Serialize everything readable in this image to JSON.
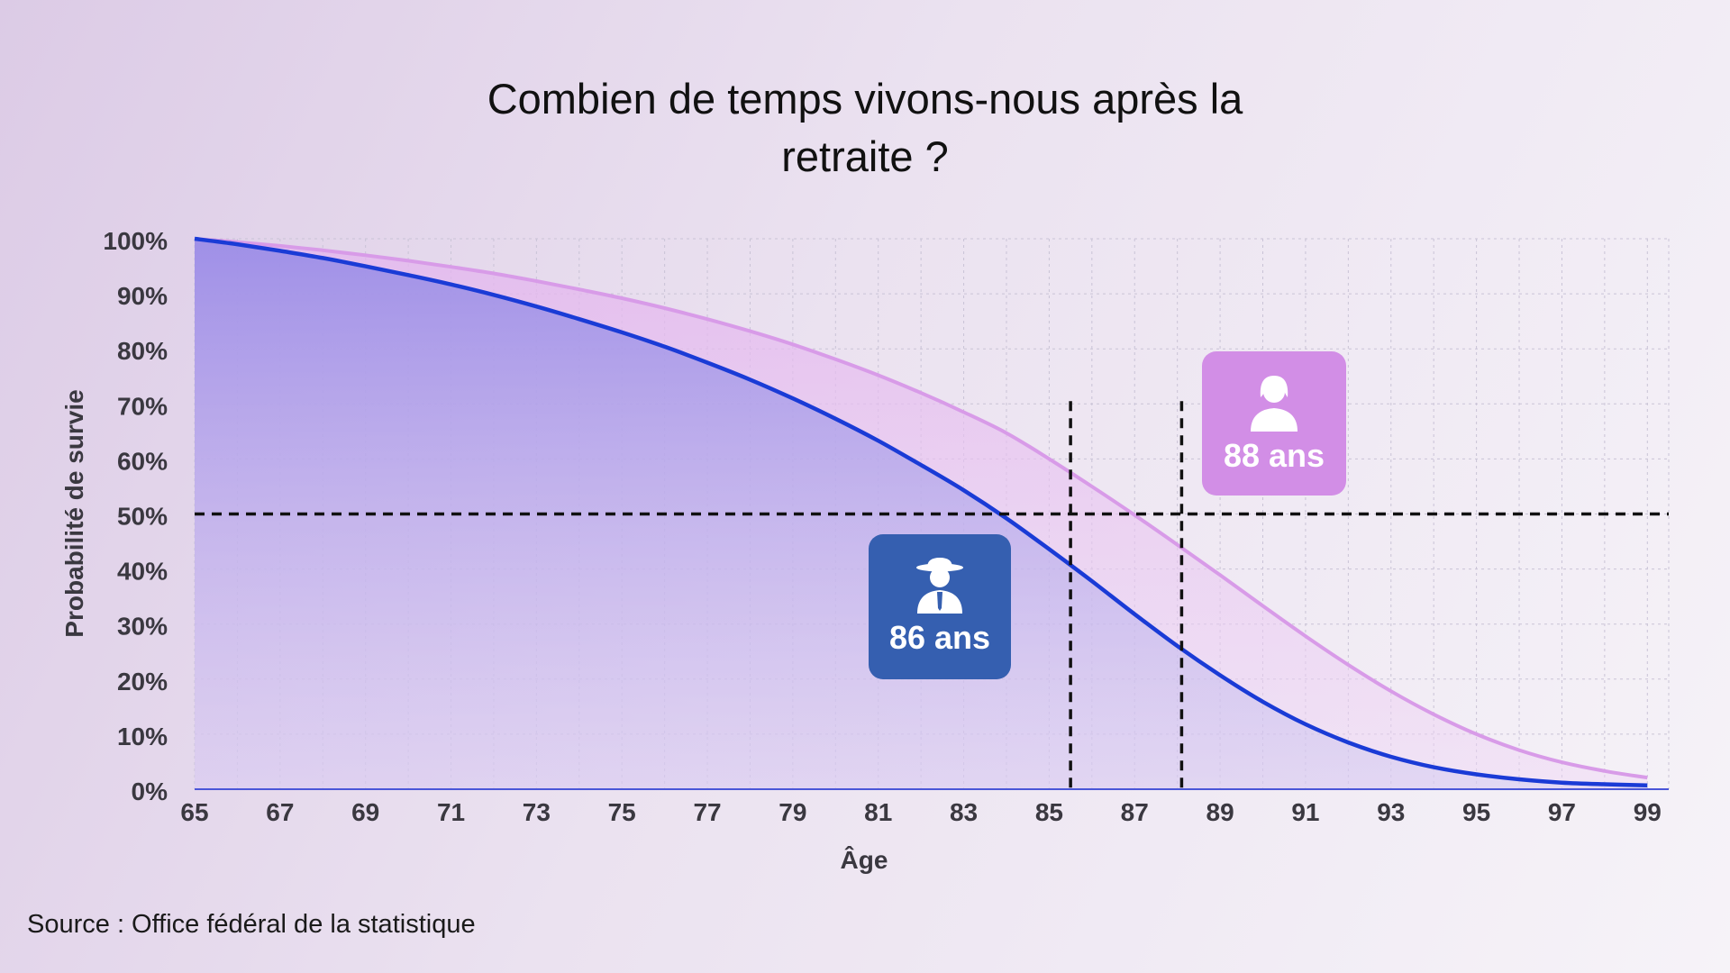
{
  "title_lines": [
    "Combien de temps vivons-nous après la",
    "retraite ?"
  ],
  "source": "Source : Office fédéral de la statistique",
  "callouts": {
    "male": {
      "label": "86 ans",
      "icon": "man-with-hat-icon",
      "color": "#355fb0"
    },
    "female": {
      "label": "88 ans",
      "icon": "woman-icon",
      "color": "#d28ee6"
    }
  },
  "chart_data": {
    "type": "area",
    "xlabel": "Âge",
    "ylabel": "Probabilité de survie",
    "xlim": [
      65,
      99.5
    ],
    "ylim": [
      0,
      100
    ],
    "x_ticks": [
      "65",
      "67",
      "69",
      "71",
      "73",
      "75",
      "77",
      "79",
      "81",
      "83",
      "85",
      "87",
      "89",
      "91",
      "93",
      "95",
      "97",
      "99"
    ],
    "y_ticks": [
      "0%",
      "10%",
      "20%",
      "30%",
      "40%",
      "50%",
      "60%",
      "70%",
      "80%",
      "90%",
      "100%"
    ],
    "grid": true,
    "x": [
      65,
      66,
      67,
      68,
      69,
      70,
      71,
      72,
      73,
      74,
      75,
      76,
      77,
      78,
      79,
      80,
      81,
      82,
      83,
      84,
      85,
      86,
      87,
      88,
      89,
      90,
      91,
      92,
      93,
      94,
      95,
      96,
      97,
      98,
      99
    ],
    "series": [
      {
        "color": "#d89be8",
        "values": [
          100,
          99.4,
          98.7,
          97.9,
          97.0,
          96.0,
          94.9,
          93.7,
          92.3,
          90.8,
          89.2,
          87.4,
          85.4,
          83.2,
          80.8,
          78.1,
          75.2,
          72.0,
          68.5,
          64.7,
          60.0,
          55.0,
          49.8,
          44.4,
          38.9,
          33.3,
          27.8,
          22.6,
          17.8,
          13.6,
          10.0,
          7.1,
          4.9,
          3.3,
          2.1
        ]
      },
      {
        "color": "#1a3bd6",
        "values": [
          100,
          99.0,
          97.8,
          96.5,
          95.0,
          93.4,
          91.7,
          89.8,
          87.7,
          85.4,
          83.0,
          80.4,
          77.5,
          74.4,
          71.0,
          67.3,
          63.3,
          58.9,
          54.3,
          49.2,
          43.6,
          37.8,
          31.8,
          26.0,
          20.7,
          15.9,
          11.8,
          8.5,
          5.9,
          4.0,
          2.7,
          1.8,
          1.2,
          0.9,
          0.7
        ]
      }
    ],
    "reference_lines": {
      "y": 50,
      "x": [
        85.5,
        88.1
      ]
    }
  }
}
